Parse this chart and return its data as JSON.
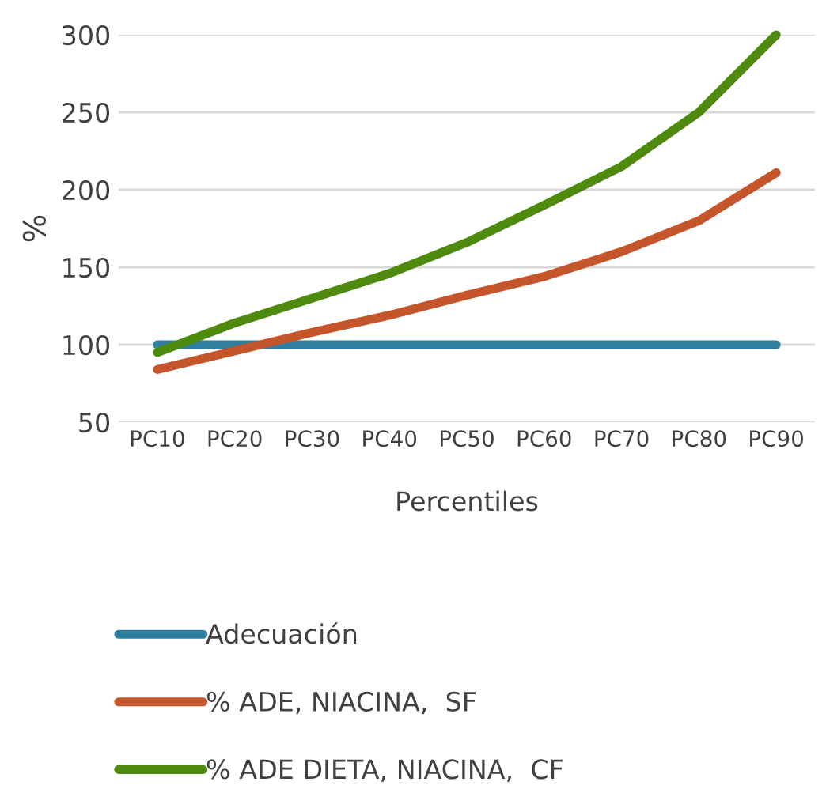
{
  "chart_data": {
    "type": "line",
    "xlabel": "Percentiles",
    "ylabel": "%",
    "categories": [
      "PC10",
      "PC20",
      "PC30",
      "PC40",
      "PC50",
      "PC60",
      "PC70",
      "PC80",
      "PC90"
    ],
    "series": [
      {
        "name": "Adecuación",
        "color": "#2e7fa0",
        "values": [
          100,
          100,
          100,
          100,
          100,
          100,
          100,
          100,
          100
        ]
      },
      {
        "name": "% ADE, NIACINA,  SF",
        "color": "#c5552a",
        "values": [
          84,
          96,
          108,
          119,
          132,
          144,
          160,
          180,
          211
        ]
      },
      {
        "name": "% ADE DIETA, NIACINA,  CF",
        "color": "#4e8a0e",
        "values": [
          95,
          114,
          130,
          146,
          166,
          190,
          215,
          250,
          300
        ]
      }
    ],
    "ylim": [
      50,
      300
    ],
    "yticks": [
      50,
      100,
      150,
      200,
      250,
      300
    ],
    "grid": "y",
    "legend": "bottom",
    "marker": "none",
    "line_style": "solid"
  }
}
